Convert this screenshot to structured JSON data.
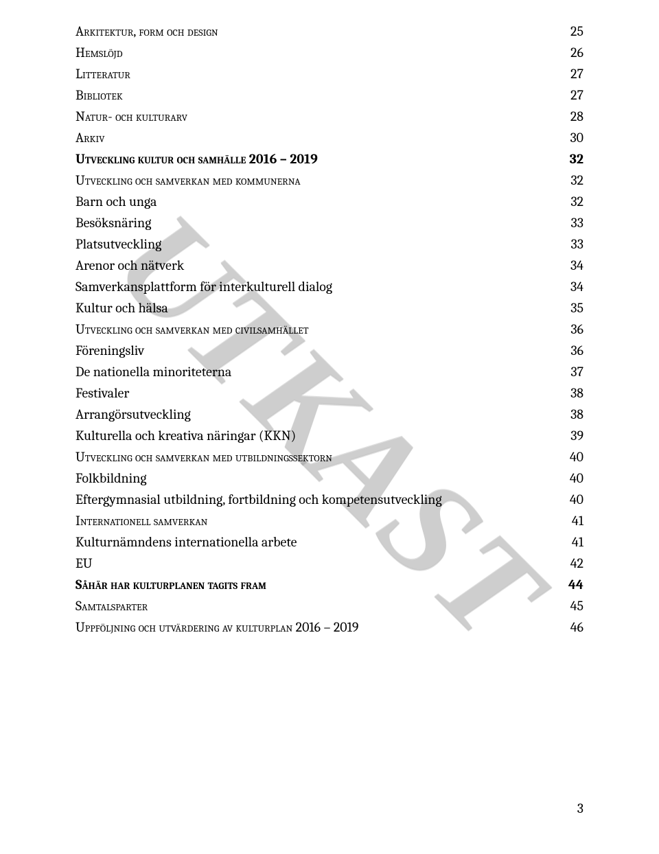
{
  "watermark_text": "UTKAST",
  "footer_page_number": "3",
  "toc": [
    {
      "label": "Arkitektur, form och design",
      "page": "25",
      "style": "sc"
    },
    {
      "label": "Hemslöjd",
      "page": "26",
      "style": "sc"
    },
    {
      "label": "Litteratur",
      "page": "27",
      "style": "sc"
    },
    {
      "label": "Bibliotek",
      "page": "27",
      "style": "sc"
    },
    {
      "label": "Natur- och kulturarv",
      "page": "28",
      "style": "sc"
    },
    {
      "label": "Arkiv",
      "page": "30",
      "style": "sc"
    },
    {
      "label": "Utveckling kultur och samhälle 2016 – 2019",
      "page": "32",
      "style": "scbold"
    },
    {
      "label": "Utveckling och samverkan med kommunerna",
      "page": "32",
      "style": "sc"
    },
    {
      "label": "Barn och unga",
      "page": "32",
      "style": "plain"
    },
    {
      "label": "Besöksnäring",
      "page": "33",
      "style": "plain"
    },
    {
      "label": "Platsutveckling",
      "page": "33",
      "style": "plain"
    },
    {
      "label": "Arenor och nätverk",
      "page": "34",
      "style": "plain"
    },
    {
      "label": "Samverkansplattform för interkulturell dialog",
      "page": "34",
      "style": "plain"
    },
    {
      "label": "Kultur och hälsa",
      "page": "35",
      "style": "plain"
    },
    {
      "label": "Utveckling och samverkan med civilsamhället",
      "page": "36",
      "style": "sc"
    },
    {
      "label": "Föreningsliv",
      "page": "36",
      "style": "plain"
    },
    {
      "label": "De nationella minoriteterna",
      "page": "37",
      "style": "plain"
    },
    {
      "label": "Festivaler",
      "page": "38",
      "style": "plain"
    },
    {
      "label": "Arrangörsutveckling",
      "page": "38",
      "style": "plain"
    },
    {
      "label": "Kulturella och kreativa näringar (KKN)",
      "page": "39",
      "style": "plain"
    },
    {
      "label": "Utveckling och samverkan med utbildningssektorn",
      "page": "40",
      "style": "sc"
    },
    {
      "label": "Folkbildning",
      "page": "40",
      "style": "plain"
    },
    {
      "label": "Eftergymnasial utbildning, fortbildning och kompetensutveckling",
      "page": "40",
      "style": "plain"
    },
    {
      "label": "Internationell samverkan",
      "page": "41",
      "style": "sc"
    },
    {
      "label": "Kulturnämndens internationella arbete",
      "page": "41",
      "style": "plain"
    },
    {
      "label": "EU",
      "page": "42",
      "style": "plain"
    },
    {
      "label": "Såhär har kulturplanen tagits fram",
      "page": "44",
      "style": "scbold"
    },
    {
      "label": "Samtalsparter",
      "page": "45",
      "style": "sc"
    },
    {
      "label": "Uppföljning och utvärdering av kulturplan 2016 – 2019",
      "page": "46",
      "style": "sc"
    }
  ]
}
